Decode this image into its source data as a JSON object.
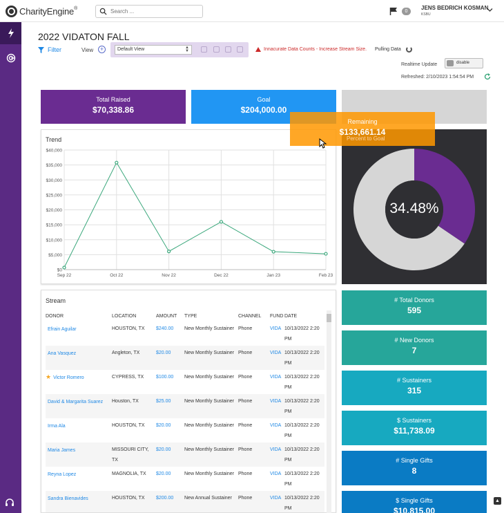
{
  "app": {
    "logo_text": "CharityEngine",
    "logo_mark": "®"
  },
  "header": {
    "search_placeholder": "Search ...",
    "notification_count": "0",
    "user_name": "JENS BEDRICH KOSMAN",
    "user_sub": "KSBU"
  },
  "page": {
    "title": "2022 VIDATON FALL",
    "filter_label": "Filter",
    "view_label": "View",
    "view_add": "+",
    "view_selected": "Default View",
    "warning": "Innacurate Data Counts - Increase Stream Size.",
    "pulling": "Pulling Data",
    "realtime_label": "Realtime Update",
    "realtime_toggle": "disable",
    "refreshed": "Refreshed: 2/10/2023 1:54:54 PM"
  },
  "stats": {
    "raised_label": "Total Raised",
    "raised_value": "$70,338.86",
    "goal_label": "Goal",
    "goal_value": "$204,000.00",
    "remaining_label": "Remaining",
    "remaining_value": "$133,661.14",
    "remaining_sub": "Percent to Goal"
  },
  "trend": {
    "title": "Trend"
  },
  "chart_data": {
    "type": "line",
    "title": "Trend",
    "categories": [
      "Sep 22",
      "Oct 22",
      "Nov 22",
      "Dec 22",
      "Jan 23",
      "Feb 23"
    ],
    "y_ticks": [
      "$0",
      "$5,000",
      "$10,000",
      "$15,000",
      "$20,000",
      "$25,000",
      "$30,000",
      "$35,000",
      "$40,000"
    ],
    "ylim": [
      0,
      40000
    ],
    "series": [
      {
        "values": [
          700,
          35800,
          6100,
          16000,
          6000,
          5300
        ]
      }
    ],
    "line_color": "#3aa77b",
    "grid": true
  },
  "donut": {
    "percent_text": "34.48%",
    "percent": 34.48,
    "fill_color": "#6a2c91",
    "rest_color": "#d6d6d6"
  },
  "stream": {
    "title": "Stream",
    "columns": [
      "DONOR",
      "LOCATION",
      "AMOUNT",
      "TYPE",
      "CHANNEL",
      "FUND",
      "DATE"
    ],
    "rows": [
      {
        "donor": "Efrain Aguilar",
        "location": "HOUSTON, TX",
        "amount": "$240.00",
        "type": "New Monthly Sustainer",
        "channel": "Phone",
        "fund": "VIDA",
        "date": "10/13/2022 2:20 PM",
        "star": ""
      },
      {
        "donor": "Ana Vasquez",
        "location": "Angleton, TX",
        "amount": "$20.00",
        "type": "New Monthly Sustainer",
        "channel": "Phone",
        "fund": "VIDA",
        "date": "10/13/2022 2:20 PM",
        "star": ""
      },
      {
        "donor": "Victor Romero",
        "location": "CYPRESS, TX",
        "amount": "$100.00",
        "type": "New Monthly Sustainer",
        "channel": "Phone",
        "fund": "VIDA",
        "date": "10/13/2022 2:20 PM",
        "star": "★"
      },
      {
        "donor": "David & Margarita Suarez",
        "location": "Houston, TX",
        "amount": "$25.00",
        "type": "New Monthly Sustainer",
        "channel": "Phone",
        "fund": "VIDA",
        "date": "10/13/2022 2:20 PM",
        "star": ""
      },
      {
        "donor": "Irma Ala",
        "location": "HOUSTON, TX",
        "amount": "$20.00",
        "type": "New Monthly Sustainer",
        "channel": "Phone",
        "fund": "VIDA",
        "date": "10/13/2022 2:20 PM",
        "star": ""
      },
      {
        "donor": "Maria James",
        "location": "MISSOURI CITY, TX",
        "amount": "$20.00",
        "type": "New Monthly Sustainer",
        "channel": "Phone",
        "fund": "VIDA",
        "date": "10/13/2022 2:20 PM",
        "star": ""
      },
      {
        "donor": "Reyna Lopez",
        "location": "MAGNOLIA, TX",
        "amount": "$20.00",
        "type": "New Monthly Sustainer",
        "channel": "Phone",
        "fund": "VIDA",
        "date": "10/13/2022 2:20 PM",
        "star": ""
      },
      {
        "donor": "Sandra Bienavides",
        "location": "HOUSTON, TX",
        "amount": "$200.00",
        "type": "New Annual Sustainer",
        "channel": "Phone",
        "fund": "VIDA",
        "date": "10/13/2022 2:20 PM",
        "star": ""
      }
    ]
  },
  "metrics": [
    {
      "label": "# Total Donors",
      "value": "595",
      "color": "#26a69a"
    },
    {
      "label": "# New Donors",
      "value": "7",
      "color": "#26a69a"
    },
    {
      "label": "# Sustainers",
      "value": "315",
      "color": "#17a9c0"
    },
    {
      "label": "$ Sustainers",
      "value": "$11,738.09",
      "color": "#17a9c0"
    },
    {
      "label": "# Single Gifts",
      "value": "8",
      "color": "#0a7bc4"
    },
    {
      "label": "$ Single Gifts",
      "value": "$10,815.00",
      "color": "#0a7bc4"
    }
  ]
}
